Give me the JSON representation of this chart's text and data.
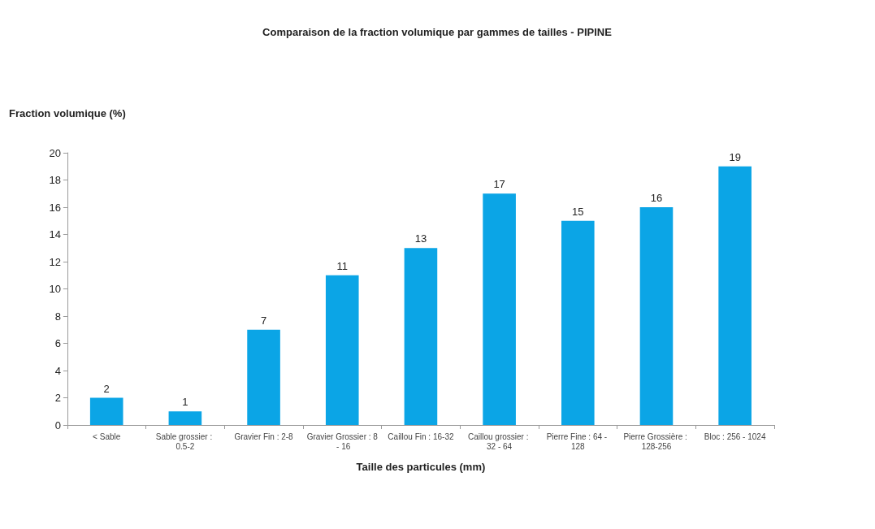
{
  "chart_data": {
    "type": "bar",
    "title": "Comparaison de la fraction volumique par gammes de tailles - PIPINE",
    "xlabel": "Taille des particules (mm)",
    "ylabel": "Fraction volumique (%)",
    "categories": [
      "< Sable",
      "Sable grossier : 0.5-2",
      "Gravier Fin : 2-8",
      "Gravier Grossier : 8 - 16",
      "Caillou Fin : 16-32",
      "Caillou grossier : 32 - 64",
      "Pierre Fine : 64 - 128",
      "Pierre Grossière : 128-256",
      "Bloc : 256 - 1024"
    ],
    "values": [
      2,
      1,
      7,
      11,
      13,
      17,
      15,
      16,
      19
    ],
    "color": "#0ba5e6",
    "ylim": [
      0,
      20
    ],
    "yticks": [
      0,
      2,
      4,
      6,
      8,
      10,
      12,
      14,
      16,
      18,
      20
    ],
    "grid": false,
    "data_labels": true
  }
}
